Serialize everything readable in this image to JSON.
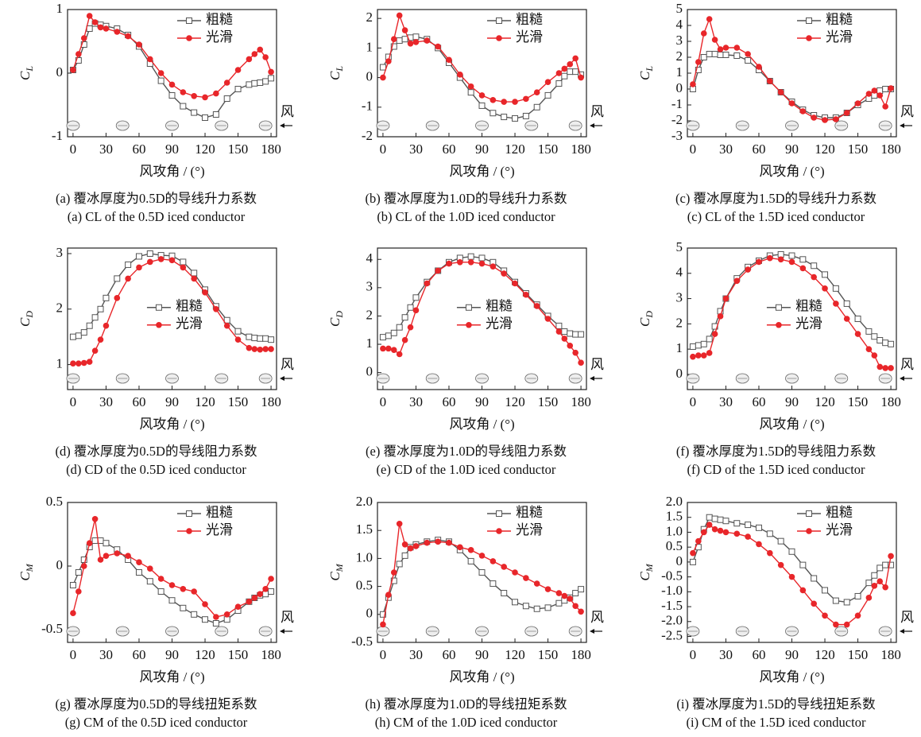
{
  "chart_data": [
    {
      "type": "line",
      "ylabel": "C",
      "ylabel_sub": "L",
      "xlabel": "风攻角 / (°)",
      "caption_zh": "(a)  覆冰厚度为0.5D的导线升力系数",
      "caption_en": "(a)  CL of the 0.5D iced conductor",
      "wind_label": "风",
      "legend": "upper right",
      "xlim": [
        -5,
        185
      ],
      "xticks": [
        0,
        30,
        60,
        90,
        120,
        150,
        180
      ],
      "ylim": [
        -1,
        1
      ],
      "yticks": [
        -1,
        0,
        1
      ],
      "x": [
        0,
        5,
        10,
        15,
        20,
        25,
        30,
        40,
        50,
        60,
        70,
        80,
        90,
        100,
        110,
        120,
        130,
        140,
        150,
        160,
        165,
        170,
        175,
        180
      ],
      "series": [
        {
          "name": "粗糙",
          "color": "#555555",
          "values": [
            0.05,
            0.2,
            0.45,
            0.7,
            0.78,
            0.76,
            0.74,
            0.7,
            0.6,
            0.42,
            0.15,
            -0.12,
            -0.35,
            -0.52,
            -0.62,
            -0.7,
            -0.65,
            -0.4,
            -0.25,
            -0.18,
            -0.16,
            -0.15,
            -0.13,
            -0.08
          ]
        },
        {
          "name": "光滑",
          "color": "#e8262a",
          "values": [
            0.05,
            0.3,
            0.55,
            0.9,
            0.8,
            0.72,
            0.7,
            0.65,
            0.58,
            0.45,
            0.22,
            0,
            -0.18,
            -0.3,
            -0.36,
            -0.38,
            -0.32,
            -0.15,
            0.05,
            0.22,
            0.3,
            0.37,
            0.25,
            0.02
          ]
        }
      ]
    },
    {
      "type": "line",
      "ylabel": "C",
      "ylabel_sub": "L",
      "xlabel": "风攻角 / (°)",
      "caption_zh": "(b)  覆冰厚度为1.0D的导线升力系数",
      "caption_en": "(b)  CL of the 1.0D iced conductor",
      "wind_label": "风",
      "legend": "upper right",
      "xlim": [
        -5,
        185
      ],
      "xticks": [
        0,
        30,
        60,
        90,
        120,
        150,
        180
      ],
      "ylim": [
        -2,
        2.3
      ],
      "yticks": [
        -2,
        -1,
        0,
        1,
        2
      ],
      "x": [
        0,
        5,
        10,
        15,
        20,
        25,
        30,
        40,
        50,
        60,
        70,
        80,
        90,
        100,
        110,
        120,
        130,
        140,
        150,
        160,
        165,
        170,
        175,
        180
      ],
      "series": [
        {
          "name": "粗糙",
          "color": "#555555",
          "values": [
            0.35,
            0.7,
            1.05,
            1.25,
            1.3,
            1.35,
            1.38,
            1.3,
            1.0,
            0.5,
            0,
            -0.5,
            -0.95,
            -1.2,
            -1.33,
            -1.38,
            -1.3,
            -1.0,
            -0.6,
            -0.2,
            0.05,
            0.2,
            0.2,
            0.1
          ]
        },
        {
          "name": "光滑",
          "color": "#e8262a",
          "values": [
            0,
            0.55,
            1.3,
            2.1,
            1.6,
            1.15,
            1.2,
            1.25,
            1.05,
            0.6,
            0.1,
            -0.3,
            -0.6,
            -0.76,
            -0.82,
            -0.82,
            -0.72,
            -0.5,
            -0.15,
            0.15,
            0.3,
            0.45,
            0.65,
            0
          ]
        }
      ]
    },
    {
      "type": "line",
      "ylabel": "C",
      "ylabel_sub": "L",
      "xlabel": "风攻角 / (°)",
      "caption_zh": "(c)  覆冰厚度为1.5D的导线升力系数",
      "caption_en": "(c)  CL of the 1.5D iced conductor",
      "wind_label": "风",
      "legend": "upper right",
      "xlim": [
        -5,
        185
      ],
      "xticks": [
        0,
        30,
        60,
        90,
        120,
        150,
        180
      ],
      "ylim": [
        -3,
        5
      ],
      "yticks": [
        -3,
        -2,
        -1,
        0,
        1,
        2,
        3,
        4,
        5
      ],
      "x": [
        0,
        5,
        10,
        15,
        20,
        25,
        30,
        40,
        50,
        60,
        70,
        80,
        90,
        100,
        110,
        120,
        130,
        140,
        150,
        160,
        165,
        170,
        175,
        180
      ],
      "series": [
        {
          "name": "粗糙",
          "color": "#555555",
          "values": [
            0,
            1.2,
            2,
            2.2,
            2.2,
            2.15,
            2.15,
            2.1,
            1.8,
            1.2,
            0.5,
            -0.2,
            -0.8,
            -1.3,
            -1.65,
            -1.8,
            -1.8,
            -1.5,
            -1,
            -0.6,
            -0.4,
            -0.1,
            0,
            0
          ]
        },
        {
          "name": "光滑",
          "color": "#e8262a",
          "values": [
            0.3,
            1.7,
            3.5,
            4.4,
            3.1,
            2.5,
            2.6,
            2.6,
            2.2,
            1.4,
            0.5,
            -0.2,
            -0.9,
            -1.4,
            -1.8,
            -1.95,
            -1.9,
            -1.5,
            -0.9,
            -0.3,
            -0.1,
            -0.4,
            -1.1,
            0.05
          ]
        }
      ]
    },
    {
      "type": "line",
      "ylabel": "C",
      "ylabel_sub": "D",
      "xlabel": "风攻角 / (°)",
      "caption_zh": "(d)  覆冰厚度为0.5D的导线阻力系数",
      "caption_en": "(d)  CD of the 0.5D iced conductor",
      "wind_label": "风",
      "legend": "center",
      "xlim": [
        -5,
        185
      ],
      "xticks": [
        0,
        30,
        60,
        90,
        120,
        150,
        180
      ],
      "ylim": [
        0.55,
        3.1
      ],
      "yticks": [
        1,
        2,
        3
      ],
      "x": [
        0,
        5,
        10,
        15,
        20,
        25,
        30,
        40,
        50,
        60,
        70,
        80,
        90,
        100,
        110,
        120,
        130,
        140,
        150,
        160,
        165,
        170,
        175,
        180
      ],
      "series": [
        {
          "name": "粗糙",
          "color": "#555555",
          "values": [
            1.5,
            1.52,
            1.58,
            1.7,
            1.85,
            2.0,
            2.2,
            2.55,
            2.8,
            2.95,
            3.0,
            2.97,
            2.96,
            2.85,
            2.65,
            2.35,
            2.05,
            1.8,
            1.6,
            1.5,
            1.48,
            1.47,
            1.47,
            1.45
          ]
        },
        {
          "name": "光滑",
          "color": "#e8262a",
          "values": [
            1.02,
            1.02,
            1.03,
            1.05,
            1.25,
            1.45,
            1.7,
            2.2,
            2.55,
            2.75,
            2.85,
            2.9,
            2.88,
            2.75,
            2.55,
            2.3,
            2.0,
            1.7,
            1.45,
            1.3,
            1.28,
            1.27,
            1.28,
            1.28
          ]
        }
      ]
    },
    {
      "type": "line",
      "ylabel": "C",
      "ylabel_sub": "D",
      "xlabel": "风攻角 / (°)",
      "caption_zh": "(e)  覆冰厚度为1.0D的导线阻力系数",
      "caption_en": "(e)  CD of the 1.0D iced conductor",
      "wind_label": "风",
      "legend": "center",
      "xlim": [
        -5,
        185
      ],
      "xticks": [
        0,
        30,
        60,
        90,
        120,
        150,
        180
      ],
      "ylim": [
        -0.6,
        4.4
      ],
      "yticks": [
        0,
        1,
        2,
        3,
        4
      ],
      "x": [
        0,
        5,
        10,
        15,
        20,
        25,
        30,
        40,
        50,
        60,
        70,
        80,
        90,
        100,
        110,
        120,
        130,
        140,
        150,
        160,
        165,
        170,
        175,
        180
      ],
      "series": [
        {
          "name": "粗糙",
          "color": "#555555",
          "values": [
            1.25,
            1.3,
            1.4,
            1.6,
            1.95,
            2.3,
            2.65,
            3.2,
            3.6,
            3.9,
            4.05,
            4.1,
            4.05,
            3.9,
            3.6,
            3.2,
            2.8,
            2.4,
            2.0,
            1.65,
            1.45,
            1.38,
            1.35,
            1.35
          ]
        },
        {
          "name": "光滑",
          "color": "#e8262a",
          "values": [
            0.85,
            0.85,
            0.8,
            0.65,
            1.15,
            1.6,
            2.2,
            3.15,
            3.6,
            3.85,
            3.9,
            3.9,
            3.85,
            3.75,
            3.5,
            3.15,
            2.75,
            2.35,
            1.9,
            1.45,
            1.2,
            0.95,
            0.7,
            0.35
          ]
        }
      ]
    },
    {
      "type": "line",
      "ylabel": "C",
      "ylabel_sub": "D",
      "xlabel": "风攻角 / (°)",
      "caption_zh": "(f)  覆冰厚度为1.5D的导线阻力系数",
      "caption_en": "(f)  CD of the 1.5D iced conductor",
      "wind_label": "风",
      "legend": "center",
      "xlim": [
        -5,
        185
      ],
      "xticks": [
        0,
        30,
        60,
        90,
        120,
        150,
        180
      ],
      "ylim": [
        -0.6,
        5
      ],
      "yticks": [
        0,
        1,
        2,
        3,
        4,
        5
      ],
      "x": [
        0,
        5,
        10,
        15,
        20,
        25,
        30,
        40,
        50,
        60,
        70,
        80,
        90,
        100,
        110,
        120,
        130,
        140,
        150,
        160,
        165,
        170,
        175,
        180
      ],
      "series": [
        {
          "name": "粗糙",
          "color": "#555555",
          "values": [
            1.1,
            1.15,
            1.2,
            1.4,
            1.9,
            2.5,
            3.0,
            3.8,
            4.25,
            4.5,
            4.7,
            4.75,
            4.7,
            4.55,
            4.3,
            3.95,
            3.4,
            2.8,
            2.2,
            1.7,
            1.5,
            1.35,
            1.25,
            1.2
          ]
        },
        {
          "name": "光滑",
          "color": "#e8262a",
          "values": [
            0.7,
            0.75,
            0.75,
            0.85,
            1.6,
            2.3,
            3.0,
            3.7,
            4.15,
            4.45,
            4.6,
            4.55,
            4.45,
            4.2,
            3.85,
            3.4,
            2.8,
            2.2,
            1.6,
            1.0,
            0.75,
            0.3,
            0.25,
            0.25
          ]
        }
      ]
    },
    {
      "type": "line",
      "ylabel": "C",
      "ylabel_sub": "M",
      "xlabel": "风攻角 / (°)",
      "caption_zh": "(g)  覆冰厚度为0.5D的导线扭矩系数",
      "caption_en": "(g)  CM of the 0.5D iced conductor",
      "wind_label": "风",
      "legend": "upper right",
      "xlim": [
        -5,
        185
      ],
      "xticks": [
        0,
        30,
        60,
        90,
        120,
        150,
        180
      ],
      "ylim": [
        -0.6,
        0.5
      ],
      "yticks": [
        -0.5,
        0,
        0.5
      ],
      "x": [
        0,
        5,
        10,
        15,
        20,
        25,
        30,
        40,
        50,
        60,
        70,
        80,
        90,
        100,
        110,
        120,
        130,
        140,
        150,
        160,
        165,
        170,
        175,
        180
      ],
      "series": [
        {
          "name": "粗糙",
          "color": "#555555",
          "values": [
            -0.15,
            -0.05,
            0.05,
            0.15,
            0.2,
            0.2,
            0.18,
            0.13,
            0.05,
            -0.05,
            -0.12,
            -0.2,
            -0.27,
            -0.33,
            -0.38,
            -0.42,
            -0.45,
            -0.42,
            -0.35,
            -0.28,
            -0.25,
            -0.23,
            -0.22,
            -0.2
          ]
        },
        {
          "name": "光滑",
          "color": "#e8262a",
          "values": [
            -0.37,
            -0.2,
            0,
            0.18,
            0.37,
            0.05,
            0.08,
            0.1,
            0.08,
            0.03,
            -0.02,
            -0.1,
            -0.15,
            -0.18,
            -0.2,
            -0.3,
            -0.4,
            -0.38,
            -0.32,
            -0.28,
            -0.25,
            -0.22,
            -0.18,
            -0.1
          ]
        }
      ]
    },
    {
      "type": "line",
      "ylabel": "C",
      "ylabel_sub": "M",
      "xlabel": "风攻角 / (°)",
      "caption_zh": "(h)  覆冰厚度为1.0D的导线扭矩系数",
      "caption_en": "(h)  CM of the 1.0D iced conductor",
      "wind_label": "风",
      "legend": "upper right",
      "xlim": [
        -5,
        185
      ],
      "xticks": [
        0,
        30,
        60,
        90,
        120,
        150,
        180
      ],
      "ylim": [
        -0.5,
        2.0
      ],
      "yticks": [
        -0.5,
        0,
        0.5,
        {
          "value": 1,
          "label": "1.0"
        },
        1.5,
        {
          "value": 2,
          "label": "2.0"
        }
      ],
      "x": [
        0,
        5,
        10,
        15,
        20,
        25,
        30,
        40,
        50,
        60,
        70,
        80,
        90,
        100,
        110,
        120,
        130,
        140,
        150,
        160,
        165,
        170,
        175,
        180
      ],
      "series": [
        {
          "name": "粗糙",
          "color": "#555555",
          "values": [
            0,
            0.3,
            0.6,
            0.9,
            1.05,
            1.2,
            1.25,
            1.3,
            1.33,
            1.3,
            1.15,
            0.95,
            0.75,
            0.55,
            0.38,
            0.22,
            0.15,
            0.1,
            0.12,
            0.2,
            0.25,
            0.3,
            0.38,
            0.45
          ]
        },
        {
          "name": "光滑",
          "color": "#e8262a",
          "values": [
            -0.18,
            0.35,
            0.75,
            1.62,
            1.25,
            1.18,
            1.22,
            1.28,
            1.3,
            1.28,
            1.2,
            1.15,
            1.05,
            0.95,
            0.85,
            0.75,
            0.65,
            0.55,
            0.45,
            0.38,
            0.33,
            0.28,
            0.15,
            0.05
          ]
        }
      ]
    },
    {
      "type": "line",
      "ylabel": "C",
      "ylabel_sub": "M",
      "xlabel": "风攻角 / (°)",
      "caption_zh": "(i)  覆冰厚度为1.5D的导线扭矩系数",
      "caption_en": "(i)  CM of the 1.5D iced conductor",
      "wind_label": "风",
      "legend": "upper right",
      "xlim": [
        -5,
        185
      ],
      "xticks": [
        0,
        30,
        60,
        90,
        120,
        150,
        180
      ],
      "ylim": [
        -2.7,
        2.0
      ],
      "yticks": [
        -2.5,
        {
          "value": -2,
          "label": "-2.0"
        },
        -1.5,
        {
          "value": -1,
          "label": "-1.0"
        },
        -0.5,
        0,
        0.5,
        {
          "value": 1,
          "label": "1.0"
        },
        1.5,
        {
          "value": 2,
          "label": "2.0"
        }
      ],
      "x": [
        0,
        5,
        10,
        15,
        20,
        25,
        30,
        40,
        50,
        60,
        70,
        80,
        90,
        100,
        110,
        120,
        130,
        140,
        150,
        160,
        165,
        170,
        175,
        180
      ],
      "series": [
        {
          "name": "粗糙",
          "color": "#555555",
          "values": [
            0,
            0.5,
            1.1,
            1.5,
            1.45,
            1.42,
            1.38,
            1.3,
            1.25,
            1.15,
            0.95,
            0.7,
            0.35,
            -0.1,
            -0.55,
            -0.95,
            -1.3,
            -1.35,
            -1.15,
            -0.7,
            -0.45,
            -0.2,
            -0.1,
            -0.1
          ]
        },
        {
          "name": "光滑",
          "color": "#e8262a",
          "values": [
            0.3,
            0.7,
            1.0,
            1.25,
            1.1,
            1.05,
            1.0,
            0.95,
            0.85,
            0.6,
            0.3,
            -0.1,
            -0.5,
            -0.95,
            -1.4,
            -1.8,
            -2.1,
            -2.1,
            -1.8,
            -1.2,
            -0.8,
            -0.65,
            -0.85,
            0.2
          ]
        }
      ]
    }
  ]
}
